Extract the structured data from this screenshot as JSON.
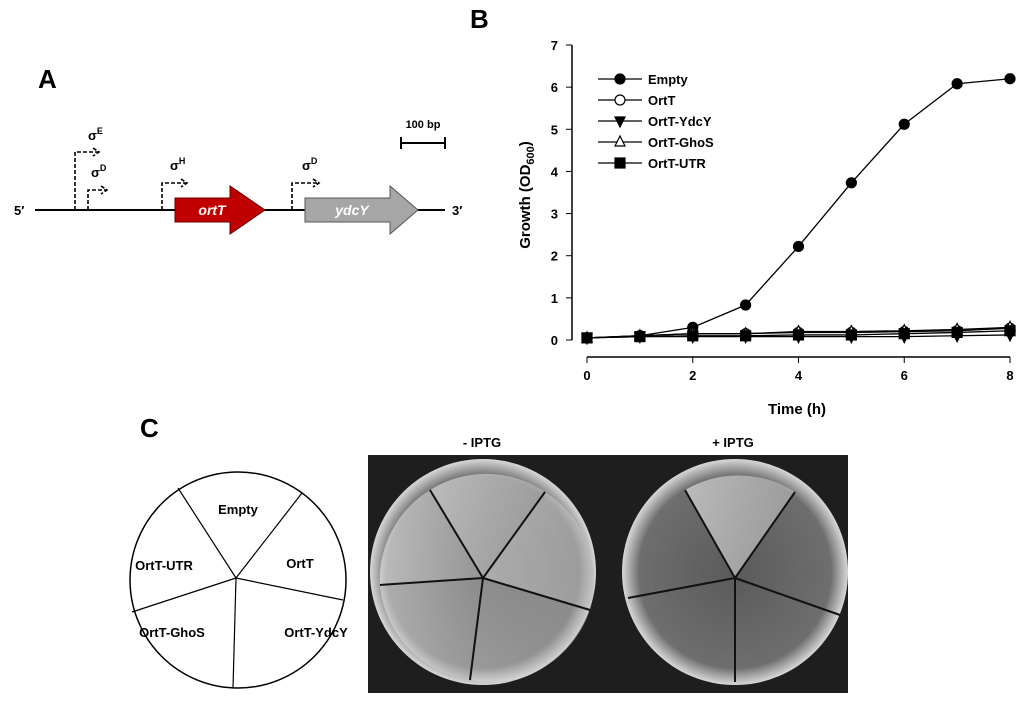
{
  "panel_a": {
    "label": "A",
    "five_prime": "5′",
    "three_prime": "3′",
    "genes": [
      {
        "name": "ortT"
      },
      {
        "name": "ydcY"
      }
    ],
    "scale_bar": "100 bp",
    "promoters": [
      {
        "symbol": "σ",
        "sup": "E"
      },
      {
        "symbol": "σ",
        "sup": "D"
      },
      {
        "symbol": "σ",
        "sup": "H"
      },
      {
        "symbol": "σ",
        "sup": "D"
      }
    ]
  },
  "chart_data": {
    "type": "line",
    "panel_label": "B",
    "x_label": "Time (h)",
    "y_label": {
      "main": "Growth (OD",
      "sub": "600",
      "end": ")"
    },
    "x": [
      0,
      1,
      2,
      3,
      4,
      5,
      6,
      7,
      8
    ],
    "xlim": [
      0,
      8
    ],
    "xticks": [
      0,
      2,
      4,
      6,
      8
    ],
    "ylim": [
      0,
      7
    ],
    "yticks": [
      0,
      1,
      2,
      3,
      4,
      5,
      6,
      7
    ],
    "series": [
      {
        "name": "Empty",
        "marker": "filled-circle",
        "color": "#000000",
        "values": [
          0.05,
          0.1,
          0.3,
          0.83,
          2.22,
          3.73,
          5.12,
          6.08,
          6.2
        ]
      },
      {
        "name": "OrtT",
        "marker": "open-circle",
        "color": "#000000",
        "values": [
          0.05,
          0.1,
          0.15,
          0.15,
          0.18,
          0.18,
          0.2,
          0.22,
          0.28
        ]
      },
      {
        "name": "OrtT-YdcY",
        "marker": "filled-down-triangle",
        "color": "#000000",
        "values": [
          0.05,
          0.08,
          0.08,
          0.08,
          0.08,
          0.08,
          0.08,
          0.1,
          0.12
        ]
      },
      {
        "name": "OrtT-GhoS",
        "marker": "open-triangle",
        "color": "#000000",
        "values": [
          0.05,
          0.1,
          0.15,
          0.15,
          0.2,
          0.2,
          0.22,
          0.25,
          0.3
        ]
      },
      {
        "name": "OrtT-UTR",
        "marker": "filled-square",
        "color": "#000000",
        "values": [
          0.05,
          0.08,
          0.1,
          0.1,
          0.12,
          0.12,
          0.15,
          0.18,
          0.22
        ]
      }
    ]
  },
  "panel_c": {
    "label": "C",
    "sectors": [
      "Empty",
      "OrtT",
      "OrtT-YdcY",
      "OrtT-GhoS",
      "OrtT-UTR"
    ],
    "plates": [
      "- IPTG",
      "+ IPTG"
    ]
  }
}
